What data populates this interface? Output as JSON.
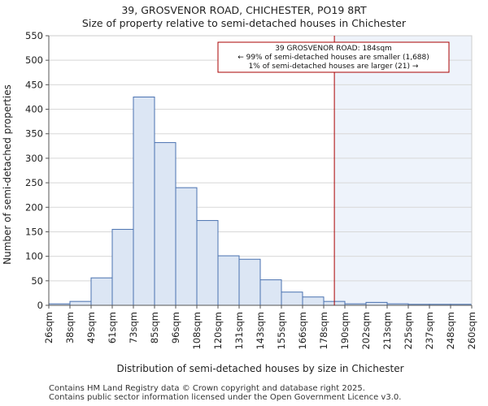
{
  "chart_data": {
    "type": "bar",
    "title": "39, GROSVENOR ROAD, CHICHESTER, PO19 8RT",
    "subtitle": "Size of property relative to semi-detached houses in Chichester",
    "xlabel": "Distribution of semi-detached houses by size in Chichester",
    "ylabel": "Number of semi-detached properties",
    "tick_labels": [
      "26sqm",
      "38sqm",
      "49sqm",
      "61sqm",
      "73sqm",
      "85sqm",
      "96sqm",
      "108sqm",
      "120sqm",
      "131sqm",
      "143sqm",
      "155sqm",
      "166sqm",
      "178sqm",
      "190sqm",
      "202sqm",
      "213sqm",
      "225sqm",
      "237sqm",
      "248sqm",
      "260sqm"
    ],
    "values": [
      3,
      8,
      56,
      155,
      425,
      332,
      240,
      173,
      101,
      94,
      52,
      27,
      17,
      8,
      3,
      6,
      3,
      2,
      2,
      2
    ],
    "ylim": [
      0,
      550
    ],
    "yticks": [
      0,
      50,
      100,
      150,
      200,
      250,
      300,
      350,
      400,
      450,
      500,
      550
    ],
    "marker_value": 184,
    "marker_color": "#aa0000",
    "bar_fill": "#dce6f4",
    "bar_edge": "#4a72b0",
    "highlight_fill": "#eef3fb",
    "annotation": {
      "line1": "39 GROSVENOR ROAD: 184sqm",
      "line2": "← 99% of semi-detached houses are smaller (1,688)",
      "line3": "1% of semi-detached houses are larger (21) →"
    }
  },
  "footer": {
    "line1": "Contains HM Land Registry data © Crown copyright and database right 2025.",
    "line2": "Contains public sector information licensed under the Open Government Licence v3.0."
  }
}
